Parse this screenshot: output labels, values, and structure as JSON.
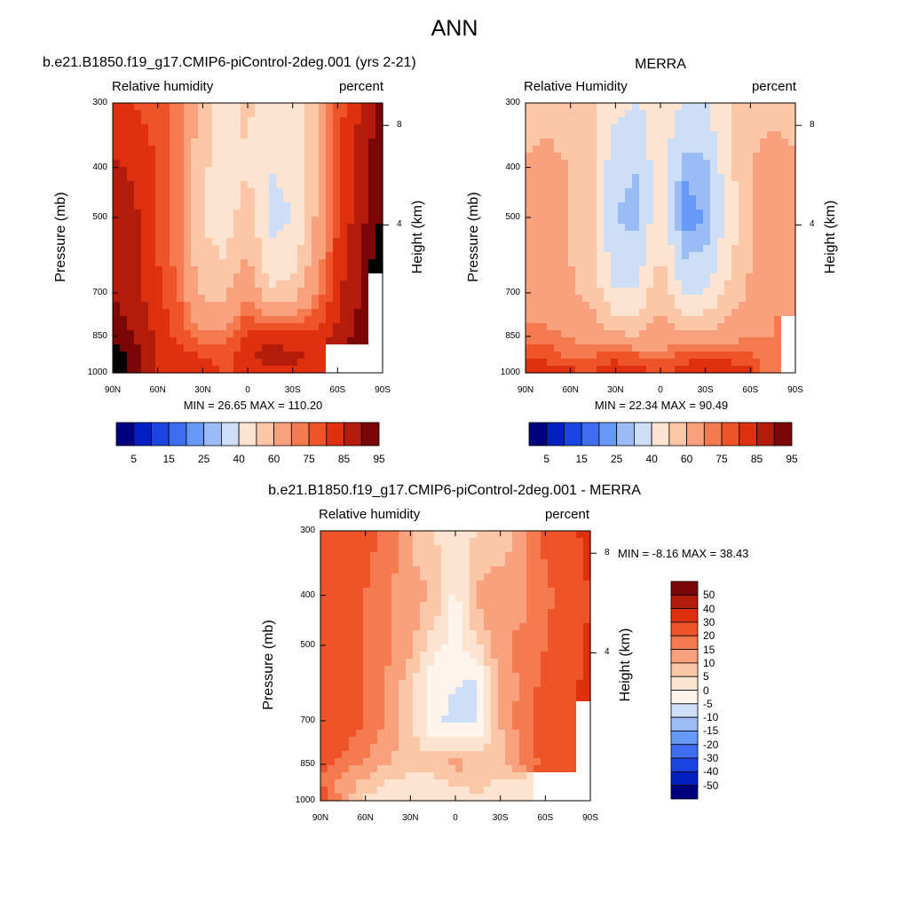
{
  "main_title": "ANN",
  "colors": {
    "model_scale": [
      "#00007f",
      "#0020c0",
      "#1a45e0",
      "#3d6ef0",
      "#6699f5",
      "#9bbcf5",
      "#cddff7",
      "#fde4d1",
      "#fcc7a7",
      "#f9a07c",
      "#f57a50",
      "#ef5328",
      "#df3110",
      "#b31b0a",
      "#7a0606"
    ],
    "diff_scale": [
      "#00007f",
      "#0020c0",
      "#1a45e0",
      "#3d6ef0",
      "#6699f5",
      "#9bbcf5",
      "#cddff7",
      "#fff5ec",
      "#fde4d1",
      "#fcc7a7",
      "#f9a07c",
      "#f57a50",
      "#ef5328",
      "#df3110",
      "#b31b0a",
      "#7a0606"
    ],
    "missing": "#ffffff"
  },
  "panels": [
    {
      "id": "model",
      "title": "b.e21.B1850.f19_g17.CMIP6-piControl-2deg.001 (yrs 2-21)",
      "left_label": "Relative humidity",
      "right_label": "percent",
      "ylabel": "Pressure (mb)",
      "ylabel_right": "Height (km)",
      "stats": "MIN =  26.65  MAX = 110.20"
    },
    {
      "id": "obs",
      "title": "MERRA",
      "left_label": "Relative Humidity",
      "right_label": "percent",
      "ylabel": "Pressure (mb)",
      "ylabel_right": "Height (km)",
      "stats": "MIN =  22.34  MAX =  90.49"
    },
    {
      "id": "diff",
      "title": "b.e21.B1850.f19_g17.CMIP6-piControl-2deg.001 - MERRA",
      "left_label": "Relative humidity",
      "right_label": "percent",
      "ylabel": "Pressure (mb)",
      "ylabel_right": "Height (km)",
      "stats": "MIN =  -8.16  MAX =  38.43"
    }
  ],
  "chart_data": [
    {
      "type": "heatmap",
      "title": "b.e21.B1850.f19_g17.CMIP6-piControl-2deg.001 (yrs 2-21)",
      "subtitle_left": "Relative humidity",
      "subtitle_right": "percent",
      "xlabel": "",
      "ylabel": "Pressure (mb)",
      "ylabel_right": "Height (km)",
      "x_ticks": [
        "90N",
        "60N",
        "30N",
        "0",
        "30S",
        "60S",
        "90S"
      ],
      "y_ticks": [
        "300",
        "400",
        "500",
        "700",
        "850",
        "1000"
      ],
      "y_right_ticks": [
        "8",
        "4"
      ],
      "y_scale": "log",
      "ylim": [
        1000,
        300
      ],
      "x": [
        -90,
        -75,
        -60,
        -45,
        -30,
        -15,
        0,
        15,
        30,
        45,
        60,
        75,
        90
      ],
      "y": [
        300,
        400,
        500,
        600,
        700,
        850,
        925,
        1000
      ],
      "z": [
        [
          82,
          80,
          78,
          72,
          55,
          45,
          52,
          42,
          45,
          58,
          78,
          85,
          92
        ],
        [
          86,
          84,
          80,
          70,
          52,
          44,
          50,
          40,
          42,
          58,
          78,
          88,
          94
        ],
        [
          88,
          86,
          80,
          70,
          50,
          46,
          55,
          38,
          40,
          60,
          80,
          88,
          96
        ],
        [
          88,
          86,
          80,
          72,
          52,
          50,
          62,
          42,
          44,
          64,
          82,
          90,
          98
        ],
        [
          90,
          86,
          82,
          74,
          58,
          58,
          70,
          52,
          56,
          70,
          84,
          90,
          null
        ],
        [
          94,
          90,
          84,
          78,
          72,
          72,
          82,
          84,
          82,
          82,
          86,
          92,
          null
        ],
        [
          98,
          92,
          84,
          82,
          80,
          78,
          84,
          88,
          86,
          84,
          null,
          null,
          null
        ],
        [
          100,
          94,
          84,
          82,
          82,
          80,
          80,
          84,
          84,
          82,
          null,
          null,
          null
        ]
      ],
      "levels": [
        5,
        10,
        15,
        20,
        25,
        30,
        40,
        50,
        60,
        70,
        75,
        80,
        85,
        90,
        95
      ],
      "colorbar_labels": [
        "5",
        "15",
        "25",
        "40",
        "60",
        "75",
        "85",
        "95"
      ],
      "stats": {
        "min": 26.65,
        "max": 110.2
      }
    },
    {
      "type": "heatmap",
      "title": "MERRA",
      "subtitle_left": "Relative Humidity",
      "subtitle_right": "percent",
      "xlabel": "",
      "ylabel": "Pressure (mb)",
      "ylabel_right": "Height (km)",
      "x_ticks": [
        "90N",
        "60N",
        "30N",
        "0",
        "30S",
        "60S",
        "90S"
      ],
      "y_ticks": [
        "300",
        "400",
        "500",
        "700",
        "850",
        "1000"
      ],
      "y_right_ticks": [
        "8",
        "4"
      ],
      "y_scale": "log",
      "ylim": [
        1000,
        300
      ],
      "x": [
        -90,
        -75,
        -60,
        -45,
        -30,
        -15,
        0,
        15,
        30,
        45,
        60,
        75,
        90
      ],
      "y": [
        300,
        400,
        500,
        600,
        700,
        850,
        925,
        1000
      ],
      "z": [
        [
          55,
          58,
          56,
          52,
          42,
          40,
          45,
          40,
          40,
          48,
          56,
          58,
          55
        ],
        [
          62,
          62,
          60,
          52,
          32,
          30,
          48,
          26,
          28,
          46,
          60,
          64,
          62
        ],
        [
          62,
          62,
          60,
          52,
          30,
          28,
          50,
          22,
          25,
          44,
          60,
          64,
          65
        ],
        [
          62,
          62,
          60,
          52,
          34,
          34,
          52,
          30,
          32,
          46,
          60,
          64,
          70
        ],
        [
          64,
          64,
          62,
          56,
          40,
          42,
          58,
          38,
          40,
          52,
          62,
          66,
          60
        ],
        [
          72,
          72,
          70,
          66,
          62,
          60,
          66,
          62,
          64,
          66,
          70,
          70,
          null
        ],
        [
          80,
          78,
          74,
          74,
          78,
          76,
          72,
          78,
          80,
          80,
          76,
          70,
          null
        ],
        [
          86,
          84,
          82,
          80,
          84,
          82,
          80,
          82,
          84,
          82,
          82,
          70,
          null
        ]
      ],
      "levels": [
        5,
        10,
        15,
        20,
        25,
        30,
        40,
        50,
        60,
        70,
        75,
        80,
        85,
        90,
        95
      ],
      "colorbar_labels": [
        "5",
        "15",
        "25",
        "40",
        "60",
        "75",
        "85",
        "95"
      ],
      "stats": {
        "min": 22.34,
        "max": 90.49
      }
    },
    {
      "type": "heatmap",
      "title": "b.e21.B1850.f19_g17.CMIP6-piControl-2deg.001 - MERRA",
      "subtitle_left": "Relative humidity",
      "subtitle_right": "percent",
      "xlabel": "",
      "ylabel": "Pressure (mb)",
      "ylabel_right": "Height (km)",
      "x_ticks": [
        "90N",
        "60N",
        "30N",
        "0",
        "30S",
        "60S",
        "90S"
      ],
      "y_ticks": [
        "300",
        "400",
        "500",
        "700",
        "850",
        "1000"
      ],
      "y_right_ticks": [
        "8",
        "4"
      ],
      "y_scale": "log",
      "ylim": [
        1000,
        300
      ],
      "x": [
        -90,
        -75,
        -60,
        -45,
        -30,
        -15,
        0,
        15,
        30,
        45,
        60,
        75,
        90
      ],
      "y": [
        300,
        400,
        500,
        600,
        700,
        850,
        925,
        1000
      ],
      "z": [
        [
          26,
          24,
          22,
          18,
          10,
          5,
          2,
          5,
          6,
          12,
          22,
          26,
          34
        ],
        [
          24,
          22,
          20,
          16,
          12,
          10,
          -2,
          12,
          14,
          14,
          18,
          24,
          30
        ],
        [
          24,
          24,
          20,
          16,
          12,
          2,
          -2,
          4,
          14,
          16,
          20,
          24,
          32
        ],
        [
          26,
          24,
          20,
          14,
          6,
          -4,
          -5,
          -6,
          12,
          16,
          22,
          26,
          34
        ],
        [
          26,
          24,
          20,
          14,
          6,
          -4,
          -6,
          -6,
          10,
          18,
          24,
          28,
          null
        ],
        [
          22,
          18,
          14,
          10,
          8,
          8,
          12,
          10,
          8,
          16,
          22,
          26,
          null
        ],
        [
          20,
          12,
          8,
          4,
          2,
          2,
          6,
          6,
          4,
          2,
          null,
          null,
          null
        ],
        [
          24,
          14,
          4,
          2,
          0,
          2,
          2,
          4,
          2,
          2,
          null,
          null,
          null
        ]
      ],
      "levels": [
        -50,
        -40,
        -30,
        -20,
        -15,
        -10,
        -5,
        0,
        5,
        10,
        15,
        20,
        30,
        40,
        50
      ],
      "colorbar_labels": [
        "50",
        "40",
        "30",
        "20",
        "15",
        "10",
        "5",
        "0",
        "-5",
        "-10",
        "-15",
        "-20",
        "-30",
        "-40",
        "-50"
      ],
      "stats": {
        "min": -8.16,
        "max": 38.43
      }
    }
  ]
}
